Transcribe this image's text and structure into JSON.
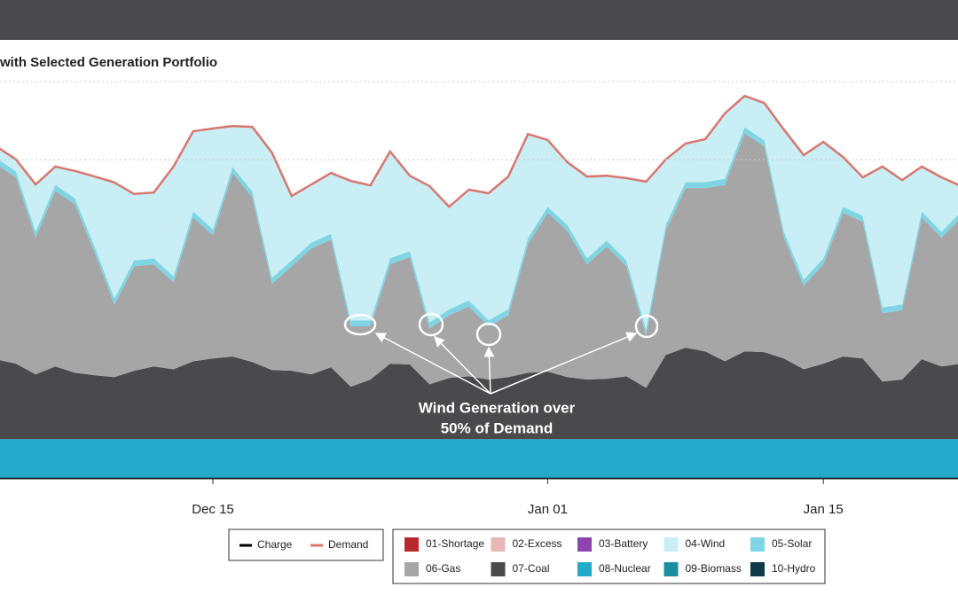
{
  "chart_data": {
    "type": "stacked_area",
    "title": "with Selected Generation Portfolio",
    "categories": [
      null,
      null,
      null,
      null,
      null,
      null,
      null,
      null,
      null,
      null,
      null,
      "Dec 15",
      null,
      null,
      null,
      null,
      null,
      null,
      null,
      null,
      null,
      null,
      null,
      null,
      null,
      null,
      null,
      null,
      "Jan 01",
      null,
      null,
      null,
      null,
      null,
      null,
      null,
      null,
      null,
      null,
      null,
      null,
      null,
      "Jan 15",
      null,
      null,
      null,
      null,
      null,
      null,
      null
    ],
    "ylim": [
      0,
      100
    ],
    "series": [
      {
        "name": "01-Shortage",
        "color": "#b8282e",
        "values": [
          0,
          0,
          0,
          0,
          0,
          0,
          0,
          0,
          0,
          0,
          0,
          0,
          0,
          0,
          0,
          0,
          0,
          0,
          0,
          0,
          0,
          0,
          0,
          0,
          0,
          0,
          0,
          0,
          0,
          0,
          0,
          0,
          0,
          0,
          0,
          0,
          0,
          0,
          0,
          0,
          0,
          0,
          0,
          0,
          0,
          0,
          0,
          0,
          0,
          0
        ]
      },
      {
        "name": "02-Excess",
        "color": "#e9b7b5",
        "values": [
          0,
          0,
          0,
          0,
          0,
          0,
          0,
          0,
          0,
          0,
          0,
          0,
          0,
          0,
          0,
          0,
          0,
          0,
          0,
          0,
          0,
          0,
          0,
          0,
          0,
          0,
          0,
          0,
          0,
          0,
          0,
          0,
          0,
          0,
          0,
          0,
          0,
          0,
          0,
          0,
          0,
          0,
          0,
          0,
          0,
          0,
          0,
          0,
          0,
          0
        ]
      },
      {
        "name": "03-Battery",
        "color": "#8e44ad",
        "values": [
          0,
          0,
          0,
          0,
          0,
          0,
          0,
          0,
          0,
          0,
          0,
          0,
          0,
          0,
          0,
          0,
          0,
          0,
          0,
          0,
          0,
          0,
          0,
          0,
          0,
          0,
          0,
          0,
          0,
          0,
          0,
          0,
          0,
          0,
          0,
          0,
          0,
          0,
          0,
          0,
          0,
          0,
          0,
          0,
          0,
          0,
          0,
          0,
          0,
          0
        ]
      },
      {
        "name": "04-Wind",
        "color": "#c9eef5",
        "values": [
          2.9,
          2.9,
          11.8,
          4.5,
          6.7,
          17.6,
          29.0,
          16.5,
          16.5,
          27.5,
          20.1,
          25.2,
          10.3,
          16.1,
          31.5,
          16.1,
          14.5,
          15.2,
          35.0,
          33.9,
          26.8,
          19.0,
          34.2,
          25.7,
          27.7,
          31.9,
          33.3,
          26.1,
          16.7,
          15.6,
          20.5,
          16.3,
          20.5,
          37.1,
          16.3,
          9.6,
          10.7,
          16.3,
          7.8,
          9.4,
          25.7,
          31.3,
          29.2,
          12.5,
          9.6,
          35.3,
          31.3,
          11.2,
          13.6,
          6.3
        ]
      },
      {
        "name": "05-Solar",
        "color": "#7fd5e3",
        "values": [
          1.5,
          1.5,
          1.5,
          1.5,
          1.5,
          1.5,
          1.5,
          1.5,
          1.5,
          1.5,
          1.5,
          1.5,
          1.5,
          1.5,
          1.5,
          1.5,
          1.5,
          1.5,
          1.5,
          1.5,
          1.5,
          1.5,
          1.5,
          1.5,
          1.5,
          1.5,
          1.5,
          1.5,
          1.5,
          1.5,
          1.5,
          1.5,
          1.5,
          1.5,
          1.5,
          1.5,
          1.5,
          1.5,
          1.5,
          1.5,
          1.5,
          1.5,
          1.5,
          1.5,
          1.5,
          1.5,
          1.5,
          1.5,
          1.5,
          1.5
        ]
      },
      {
        "name": "06-Gas",
        "color": "#a6a6a6",
        "values": [
          49.1,
          46.9,
          34.4,
          44.2,
          42.4,
          30.8,
          18.3,
          26.3,
          25.7,
          21.9,
          36.2,
          31.0,
          46.2,
          41.5,
          21.7,
          26.3,
          31.7,
          32.1,
          15.2,
          13.4,
          25.0,
          27.0,
          14.1,
          15.8,
          17.6,
          13.4,
          15.6,
          32.4,
          40.0,
          36.8,
          29.0,
          33.3,
          27.7,
          13.2,
          31.3,
          40.2,
          41.1,
          44.4,
          54.9,
          51.8,
          30.4,
          21.0,
          25.0,
          36.2,
          34.4,
          17.2,
          17.4,
          35.7,
          32.4,
          36.8
        ]
      },
      {
        "name": "07-Coal",
        "color": "#4a4a4c",
        "values": [
          20.1,
          19.0,
          16.3,
          18.3,
          16.7,
          16.1,
          15.6,
          17.2,
          18.3,
          17.6,
          19.6,
          20.3,
          20.8,
          19.4,
          17.4,
          17.2,
          16.3,
          18.1,
          13.2,
          15.0,
          19.0,
          18.8,
          13.8,
          15.4,
          15.8,
          15.0,
          15.6,
          16.7,
          17.0,
          15.6,
          15.0,
          15.2,
          15.8,
          12.9,
          21.2,
          23.0,
          22.1,
          19.6,
          22.1,
          21.9,
          20.3,
          17.6,
          19.0,
          20.8,
          20.3,
          14.5,
          15.0,
          20.1,
          18.3,
          19.0
        ]
      },
      {
        "name": "08-Nuclear",
        "color": "#23aacb",
        "values": [
          10,
          10,
          10,
          10,
          10,
          10,
          10,
          10,
          10,
          10,
          10,
          10,
          10,
          10,
          10,
          10,
          10,
          10,
          10,
          10,
          10,
          10,
          10,
          10,
          10,
          10,
          10,
          10,
          10,
          10,
          10,
          10,
          10,
          10,
          10,
          10,
          10,
          10,
          10,
          10,
          10,
          10,
          10,
          10,
          10,
          10,
          10,
          10,
          10,
          10
        ]
      },
      {
        "name": "09-Biomass",
        "color": "#1c8da0",
        "values": [
          0,
          0,
          0,
          0,
          0,
          0,
          0,
          0,
          0,
          0,
          0,
          0,
          0,
          0,
          0,
          0,
          0,
          0,
          0,
          0,
          0,
          0,
          0,
          0,
          0,
          0,
          0,
          0,
          0,
          0,
          0,
          0,
          0,
          0,
          0,
          0,
          0,
          0,
          0,
          0,
          0,
          0,
          0,
          0,
          0,
          0,
          0,
          0,
          0,
          0
        ]
      },
      {
        "name": "10-Hydro",
        "color": "#0f3a48",
        "values": [
          0,
          0,
          0,
          0,
          0,
          0,
          0,
          0,
          0,
          0,
          0,
          0,
          0,
          0,
          0,
          0,
          0,
          0,
          0,
          0,
          0,
          0,
          0,
          0,
          0,
          0,
          0,
          0,
          0,
          0,
          0,
          0,
          0,
          0,
          0,
          0,
          0,
          0,
          0,
          0,
          0,
          0,
          0,
          0,
          0,
          0,
          0,
          0,
          0,
          0
        ]
      }
    ],
    "line_series": [
      {
        "name": "Charge",
        "color": "#000000",
        "values": [
          0,
          0,
          0,
          0,
          0,
          0,
          0,
          0,
          0,
          0,
          0,
          0,
          0,
          0,
          0,
          0,
          0,
          0,
          0,
          0,
          0,
          0,
          0,
          0,
          0,
          0,
          0,
          0,
          0,
          0,
          0,
          0,
          0,
          0,
          0,
          0,
          0,
          0,
          0,
          0,
          0,
          0,
          0,
          0,
          0,
          0,
          0,
          0,
          0,
          0
        ]
      },
      {
        "name": "Demand",
        "color": "#d9776f",
        "values": [
          83.7,
          80.4,
          74.1,
          78.6,
          77.5,
          76.1,
          74.6,
          71.7,
          72.1,
          78.6,
          87.5,
          88.2,
          88.8,
          88.6,
          82.1,
          71.2,
          74.1,
          77.0,
          75.0,
          73.9,
          82.4,
          76.3,
          73.7,
          68.5,
          72.8,
          71.9,
          76.1,
          86.8,
          85.3,
          79.7,
          76.1,
          76.3,
          75.7,
          74.8,
          80.4,
          84.4,
          85.5,
          92.0,
          96.4,
          94.6,
          87.9,
          81.5,
          84.8,
          81.0,
          75.9,
          78.6,
          75.2,
          78.6,
          75.9,
          73.7
        ]
      }
    ],
    "annotation": [
      "Wind Generation over",
      "50% of Demand"
    ]
  }
}
